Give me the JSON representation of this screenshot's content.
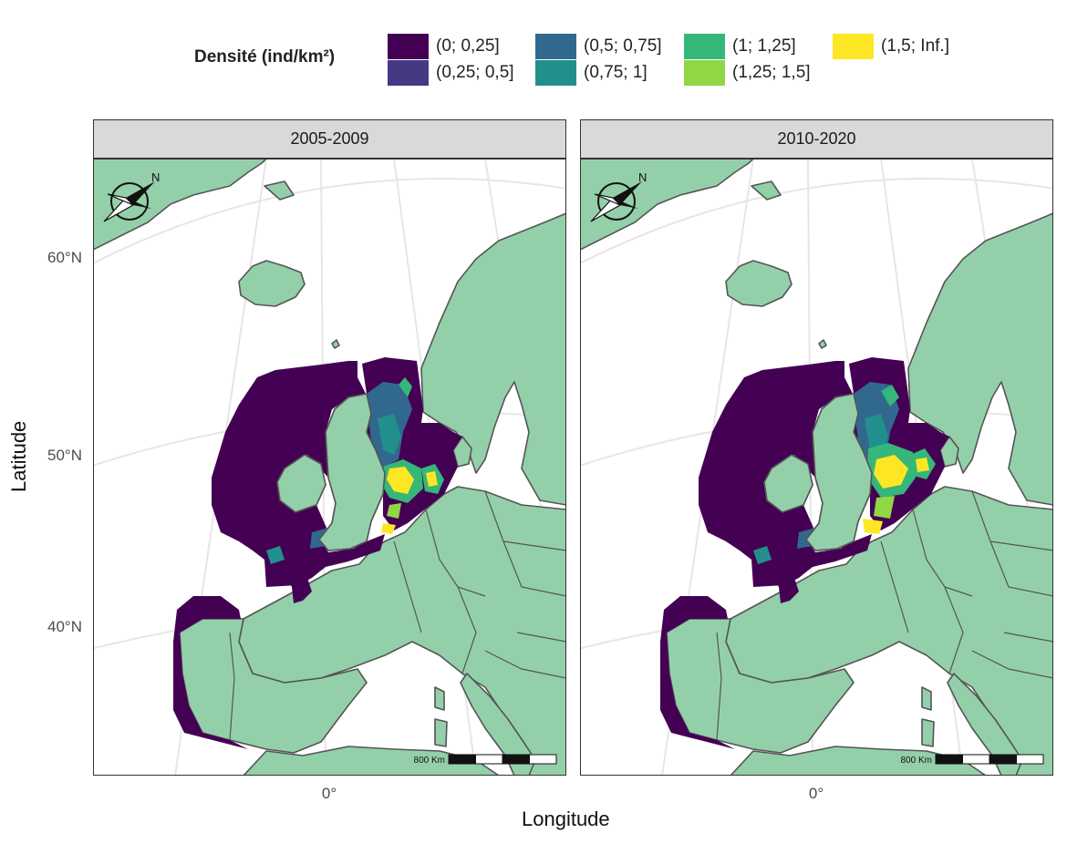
{
  "legend": {
    "title": "Densité (ind/km²)",
    "items": [
      {
        "label": "(0; 0,25]",
        "color": "#440154"
      },
      {
        "label": "(0,25; 0,5]",
        "color": "#443a83"
      },
      {
        "label": "(0,5; 0,75]",
        "color": "#31688e"
      },
      {
        "label": "(0,75; 1]",
        "color": "#21908d"
      },
      {
        "label": "(1; 1,25]",
        "color": "#35b779"
      },
      {
        "label": "(1,25; 1,5]",
        "color": "#8fd744"
      },
      {
        "label": "(1,5; Inf.]",
        "color": "#fde725"
      }
    ]
  },
  "panels": [
    {
      "title": "2005-2009",
      "scalebar_label": "800 Km",
      "north_label": "N"
    },
    {
      "title": "2010-2020",
      "scalebar_label": "800 Km",
      "north_label": "N"
    }
  ],
  "axes": {
    "xlabel": "Longitude",
    "ylabel": "Latitude",
    "yticks": [
      "60°N",
      "50°N",
      "40°N"
    ],
    "xticks": [
      "0°"
    ]
  },
  "colors": {
    "land": "#93d0aa",
    "coast": "#555555",
    "sea": "#ffffff",
    "graticule": "#e6e6e6"
  }
}
